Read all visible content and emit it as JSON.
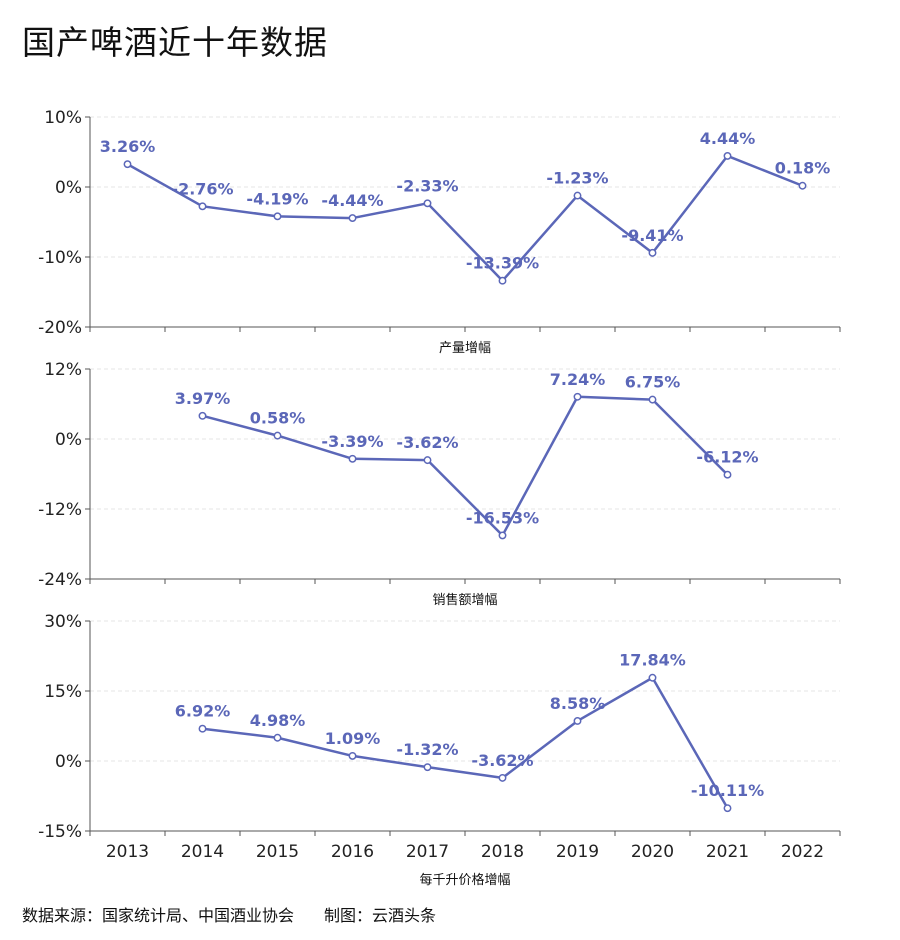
{
  "title": "国产啤酒近十年数据",
  "source": "数据来源：国家统计局、中国酒业协会",
  "credit": "制图：云酒头条",
  "chart_data": [
    {
      "type": "line",
      "caption": "产量增幅",
      "categories": [
        "2013",
        "2014",
        "2015",
        "2016",
        "2017",
        "2018",
        "2019",
        "2020",
        "2021",
        "2022"
      ],
      "values": [
        3.26,
        -2.76,
        -4.19,
        -4.44,
        -2.33,
        -13.39,
        -1.23,
        -9.41,
        4.44,
        0.18
      ],
      "labels": [
        "3.26%",
        "-2.76%",
        "-4.19%",
        "-4.44%",
        "-2.33%",
        "-13.39%",
        "-1.23%",
        "-9.41%",
        "4.44%",
        "0.18%"
      ],
      "ylim": [
        -20,
        10
      ],
      "yticks": [
        10,
        0,
        -10,
        -20
      ],
      "ytick_labels": [
        "10%",
        "0%",
        "-10%",
        "-20%"
      ]
    },
    {
      "type": "line",
      "caption": "销售额增幅",
      "categories": [
        "2013",
        "2014",
        "2015",
        "2016",
        "2017",
        "2018",
        "2019",
        "2020",
        "2021",
        "2022"
      ],
      "values": [
        null,
        3.97,
        0.58,
        -3.39,
        -3.62,
        -16.53,
        7.24,
        6.75,
        -6.12,
        null
      ],
      "labels": [
        null,
        "3.97%",
        "0.58%",
        "-3.39%",
        "-3.62%",
        "-16.53%",
        "7.24%",
        "6.75%",
        "-6.12%",
        null
      ],
      "ylim": [
        -24,
        12
      ],
      "yticks": [
        12,
        0,
        -12,
        -24
      ],
      "ytick_labels": [
        "12%",
        "0%",
        "-12%",
        "-24%"
      ]
    },
    {
      "type": "line",
      "caption": "每千升价格增幅",
      "categories": [
        "2013",
        "2014",
        "2015",
        "2016",
        "2017",
        "2018",
        "2019",
        "2020",
        "2021",
        "2022"
      ],
      "values": [
        null,
        6.92,
        4.98,
        1.09,
        -1.32,
        -3.62,
        8.58,
        17.84,
        -10.11,
        null
      ],
      "labels": [
        null,
        "6.92%",
        "4.98%",
        "1.09%",
        "-1.32%",
        "-3.62%",
        "8.58%",
        "17.84%",
        "-10.11%",
        null
      ],
      "ylim": [
        -15,
        30
      ],
      "yticks": [
        30,
        15,
        0,
        -15
      ],
      "ytick_labels": [
        "30%",
        "15%",
        "0%",
        "-15%"
      ]
    }
  ],
  "colors": {
    "line": "#5b67b8",
    "axis": "#555555",
    "grid": "#e6e6e6"
  }
}
